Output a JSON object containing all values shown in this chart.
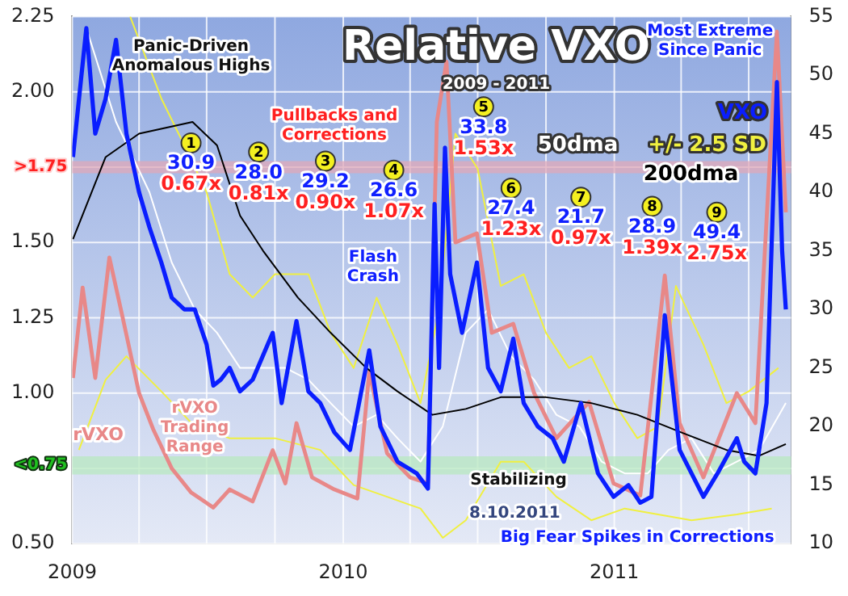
{
  "chart_data": {
    "type": "line",
    "title": "Relative VXO",
    "subtitle": "2009 - 2011",
    "xlim": [
      "2009-01-01",
      "2011-08-27"
    ],
    "xticks": [
      {
        "value": "2009-01-01",
        "label": "2009"
      },
      {
        "value": "2009-04-01",
        "label": null
      },
      {
        "value": "2009-07-01",
        "label": null
      },
      {
        "value": "2009-10-01",
        "label": null
      },
      {
        "value": "2010-01-01",
        "label": "2010"
      },
      {
        "value": "2010-04-01",
        "label": null
      },
      {
        "value": "2010-07-01",
        "label": null
      },
      {
        "value": "2010-10-01",
        "label": null
      },
      {
        "value": "2011-01-01",
        "label": "2011"
      },
      {
        "value": "2011-04-01",
        "label": null
      },
      {
        "value": "2011-07-01",
        "label": null
      }
    ],
    "ylim": [
      0.5,
      2.25
    ],
    "yticks": [
      {
        "value": 0.5,
        "label": "0.50"
      },
      {
        "value": 0.75,
        "label": null
      },
      {
        "value": 1,
        "label": "1.00"
      },
      {
        "value": 1.25,
        "label": "1.25"
      },
      {
        "value": 1.5,
        "label": "1.50"
      },
      {
        "value": 1.75,
        "label": null
      },
      {
        "value": 2,
        "label": "2.00"
      },
      {
        "value": 2.25,
        "label": "2.25"
      }
    ],
    "y2lim": [
      10,
      55
    ],
    "y2ticks": [
      10,
      15,
      20,
      25,
      30,
      35,
      40,
      45,
      50,
      55
    ],
    "grid": true,
    "bands": [
      {
        "axis": "y",
        "from": 1.73,
        "to": 1.77,
        "label": ">1.75",
        "color": "#e0a8b8"
      },
      {
        "axis": "y",
        "from": 0.73,
        "to": 0.79,
        "label": "<0.75",
        "color": "#b8e8c0"
      }
    ],
    "series": [
      {
        "name": "+/- 2.5 SD",
        "color": "#f0f040",
        "axis": "y2",
        "x": [
          "2009-03-20",
          "2009-05-01",
          "2009-06-01",
          "2009-07-01",
          "2009-08-01",
          "2009-09-01",
          "2009-10-01",
          "2009-11-15",
          "2009-12-15",
          "2010-01-15",
          "2010-02-15",
          "2010-03-15",
          "2010-04-15",
          "2010-05-10",
          "2010-06-01",
          "2010-07-01",
          "2010-08-01",
          "2010-09-01",
          "2010-10-01",
          "2010-11-01",
          "2010-12-01",
          "2011-01-01",
          "2011-02-01",
          "2011-03-01",
          "2011-03-25",
          "2011-05-01",
          "2011-06-01",
          "2011-07-01",
          "2011-08-10"
        ],
        "values": [
          55,
          48,
          44,
          40,
          33,
          31,
          33,
          33,
          28,
          25,
          31,
          27,
          22,
          30,
          45,
          42,
          32,
          33,
          28,
          25,
          26,
          22,
          19,
          20,
          32,
          27,
          22,
          23,
          25
        ]
      },
      {
        "color": "#f0f040",
        "axis": "y2",
        "x": [
          "2009-01-10",
          "2009-02-15",
          "2009-03-15",
          "2009-05-01",
          "2009-06-15",
          "2009-08-01",
          "2009-10-01",
          "2009-12-01",
          "2010-01-15",
          "2010-03-01",
          "2010-04-15",
          "2010-05-15",
          "2010-06-15",
          "2010-08-01",
          "2010-09-01",
          "2010-10-15",
          "2010-12-01",
          "2011-01-15",
          "2011-03-01",
          "2011-04-15",
          "2011-06-15",
          "2011-08-01"
        ],
        "values": [
          18,
          24,
          26,
          23,
          20,
          19,
          19,
          18,
          15,
          14,
          13,
          10.5,
          12,
          17,
          17,
          14,
          12,
          13,
          12.5,
          12,
          12.5,
          13
        ]
      },
      {
        "name": "50dma",
        "color": "#ffffff",
        "axis": "y2",
        "x": [
          "2009-01-20",
          "2009-03-01",
          "2009-04-15",
          "2009-05-15",
          "2009-06-15",
          "2009-07-15",
          "2009-08-15",
          "2009-09-15",
          "2009-10-15",
          "2009-11-15",
          "2009-12-15",
          "2010-01-15",
          "2010-02-15",
          "2010-03-15",
          "2010-04-15",
          "2010-05-15",
          "2010-06-15",
          "2010-07-15",
          "2010-08-15",
          "2010-09-15",
          "2010-10-15",
          "2010-11-15",
          "2010-12-15",
          "2011-01-15",
          "2011-02-15",
          "2011-03-15",
          "2011-04-15",
          "2011-05-15",
          "2011-06-15",
          "2011-07-15",
          "2011-08-20"
        ],
        "values": [
          54,
          46,
          40,
          34,
          30,
          28,
          25,
          25,
          25,
          24,
          22,
          20,
          21,
          19,
          17,
          20,
          28,
          30,
          26,
          24,
          21,
          20,
          17,
          16,
          16,
          18,
          19,
          16,
          17,
          18,
          22
        ]
      },
      {
        "name": "rVXO",
        "color": "#e88888",
        "x": [
          "2009-01-02",
          "2009-01-15",
          "2009-02-01",
          "2009-02-20",
          "2009-03-10",
          "2009-04-01",
          "2009-04-20",
          "2009-05-15",
          "2009-06-10",
          "2009-07-10",
          "2009-08-01",
          "2009-09-01",
          "2009-09-28",
          "2009-10-15",
          "2009-10-30",
          "2009-11-20",
          "2009-12-20",
          "2010-01-20",
          "2010-02-05",
          "2010-03-01",
          "2010-04-01",
          "2010-04-25",
          "2010-05-07",
          "2010-05-20",
          "2010-06-01",
          "2010-06-30",
          "2010-07-20",
          "2010-08-18",
          "2010-09-15",
          "2010-10-15",
          "2010-11-28",
          "2010-12-31",
          "2011-02-05",
          "2011-03-10",
          "2011-03-30",
          "2011-05-01",
          "2011-06-15",
          "2011-07-10",
          "2011-08-08",
          "2011-08-20"
        ],
        "values": [
          1.05,
          1.35,
          1.05,
          1.45,
          1.25,
          1,
          0.88,
          0.75,
          0.67,
          0.62,
          0.68,
          0.64,
          0.81,
          0.7,
          0.9,
          0.72,
          0.68,
          0.65,
          1.07,
          0.8,
          0.72,
          0.7,
          1.9,
          2.1,
          1.5,
          1.53,
          1.2,
          1.23,
          1,
          0.85,
          0.97,
          0.7,
          0.66,
          1.39,
          0.9,
          0.72,
          1,
          0.9,
          2.2,
          1.6
        ]
      },
      {
        "name": "200dma",
        "color": "#000000",
        "axis": "y2",
        "x": [
          "2009-01-02",
          "2009-02-15",
          "2009-04-01",
          "2009-06-12",
          "2009-07-15",
          "2009-08-15",
          "2009-09-15",
          "2009-11-01",
          "2009-12-15",
          "2010-02-01",
          "2010-03-15",
          "2010-05-01",
          "2010-06-15",
          "2010-08-01",
          "2010-10-01",
          "2010-12-01",
          "2011-02-01",
          "2011-04-01",
          "2011-06-01",
          "2011-07-15",
          "2011-08-20"
        ],
        "values": [
          36,
          43,
          45,
          46,
          44,
          38,
          35,
          31,
          28,
          25,
          23,
          21,
          21.5,
          22.5,
          22.5,
          22,
          21,
          19.5,
          18,
          17.5,
          18.5
        ]
      },
      {
        "name": "VXO",
        "color": "#0a1eff",
        "axis": "y2",
        "x": [
          "2009-01-02",
          "2009-01-20",
          "2009-02-01",
          "2009-02-15",
          "2009-03-01",
          "2009-03-15",
          "2009-04-01",
          "2009-04-15",
          "2009-05-01",
          "2009-05-15",
          "2009-06-01",
          "2009-06-15",
          "2009-07-01",
          "2009-07-10",
          "2009-07-20",
          "2009-08-01",
          "2009-08-15",
          "2009-09-01",
          "2009-09-28",
          "2009-10-10",
          "2009-10-30",
          "2009-11-15",
          "2009-12-01",
          "2009-12-20",
          "2010-01-10",
          "2010-02-05",
          "2010-02-20",
          "2010-03-15",
          "2010-04-10",
          "2010-04-25",
          "2010-05-04",
          "2010-05-10",
          "2010-05-18",
          "2010-05-25",
          "2010-06-10",
          "2010-06-30",
          "2010-07-15",
          "2010-08-01",
          "2010-08-18",
          "2010-09-01",
          "2010-09-20",
          "2010-10-10",
          "2010-10-25",
          "2010-11-17",
          "2010-12-10",
          "2010-12-31",
          "2011-01-20",
          "2011-02-05",
          "2011-02-20",
          "2011-03-10",
          "2011-03-30",
          "2011-04-15",
          "2011-05-01",
          "2011-05-20",
          "2011-06-15",
          "2011-06-25",
          "2011-07-10",
          "2011-07-25",
          "2011-08-08",
          "2011-08-15",
          "2011-08-20"
        ],
        "values": [
          43,
          54,
          45,
          48,
          53,
          45,
          40,
          37,
          34,
          31,
          30,
          30,
          27,
          23.5,
          24,
          25,
          23,
          24,
          28,
          22,
          29,
          23,
          22,
          19.5,
          18,
          26.5,
          20,
          17,
          16,
          14.7,
          39,
          25,
          43.8,
          33,
          28,
          34,
          25,
          23,
          27.5,
          22,
          20,
          19,
          17,
          22,
          16,
          14,
          15,
          13.5,
          14,
          29.5,
          18,
          16,
          14,
          16,
          19,
          17,
          16,
          22,
          49.4,
          35,
          30
        ]
      }
    ],
    "annotations": [
      "Panic-Driven Anomalous Highs",
      {
        "text": "1\n30.9\n0.67x",
        "x": "2009-06-10",
        "y": 1.83
      },
      {
        "text": "2\n28.0\n0.81x",
        "x": "2009-09-09",
        "y": 1.8
      },
      {
        "text": "3\n29.2\n0.90x",
        "x": "2009-12-08",
        "y": 1.77
      },
      {
        "text": "4\n26.6\n1.07x",
        "x": "2010-03-10",
        "y": 1.74
      },
      {
        "text": "5\n33.8\n1.53x",
        "x": "2010-07-09",
        "y": 1.95
      },
      {
        "text": "6\n27.4\n1.23x",
        "x": "2010-08-15",
        "y": 1.68
      },
      {
        "text": "7\n21.7\n0.97x",
        "x": "2010-11-17",
        "y": 1.65
      },
      {
        "text": "8\n28.9\n1.39x",
        "x": "2011-02-21",
        "y": 1.62
      },
      {
        "text": "9\n49.4\n2.75x",
        "x": "2011-05-19",
        "y": 1.6
      },
      "Pullbacks and Corrections",
      "Flash Crash",
      "Most Extreme Since Panic",
      "rVXO Trading Range",
      "Stabilizing",
      "Big Fear Spikes in Corrections",
      "8.10.2011"
    ]
  }
}
